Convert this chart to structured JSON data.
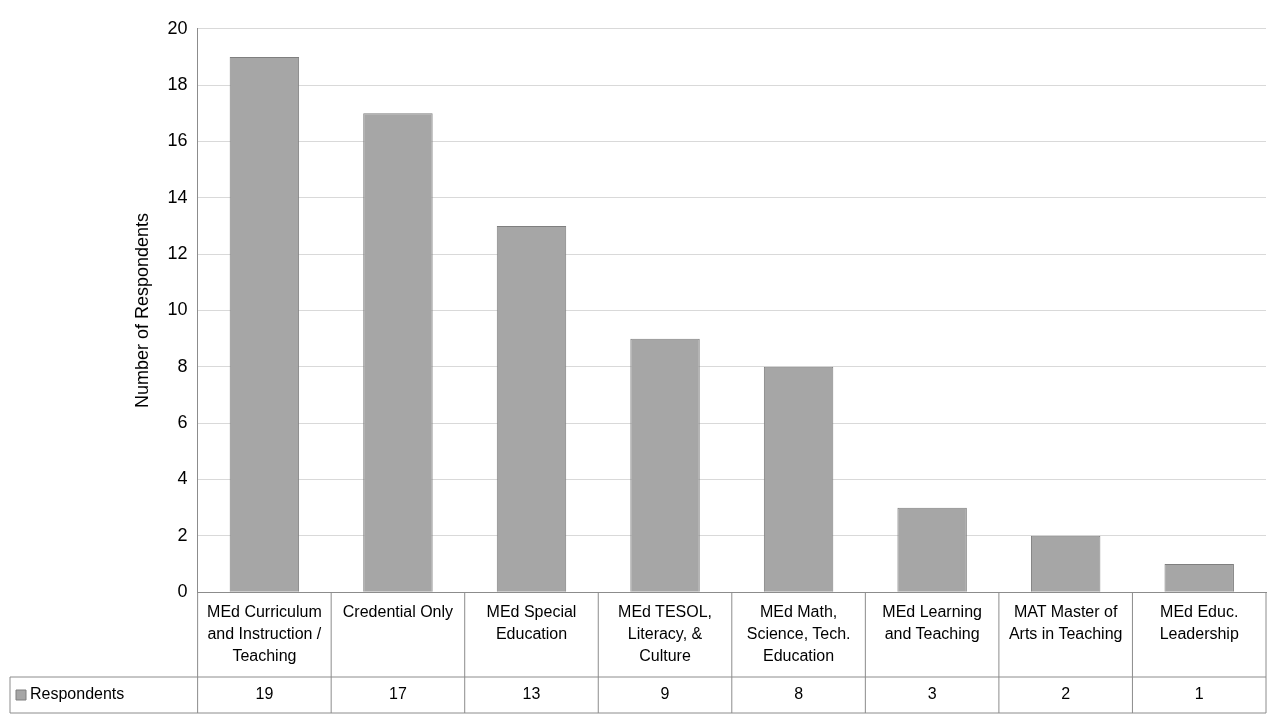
{
  "chart_data": {
    "type": "bar",
    "ylabel": "Number of Respondents",
    "categories": [
      "MEd Curriculum and Instruction / Teaching",
      "Credential Only",
      "MEd Special Education",
      "MEd TESOL, Literacy, & Culture",
      "MEd Math, Science, Tech. Education",
      "MEd Learning and Teaching",
      "MAT Master of Arts in Teaching",
      "MEd Educ. Leadership"
    ],
    "series": [
      {
        "name": "Respondents",
        "color": "#a6a6a6",
        "values": [
          19,
          17,
          13,
          9,
          8,
          3,
          2,
          1
        ]
      }
    ],
    "ylim": [
      0,
      20
    ],
    "yticks": [
      0,
      2,
      4,
      6,
      8,
      10,
      12,
      14,
      16,
      18,
      20
    ],
    "grid": "y",
    "legend": "bottom",
    "data_labels": true
  }
}
